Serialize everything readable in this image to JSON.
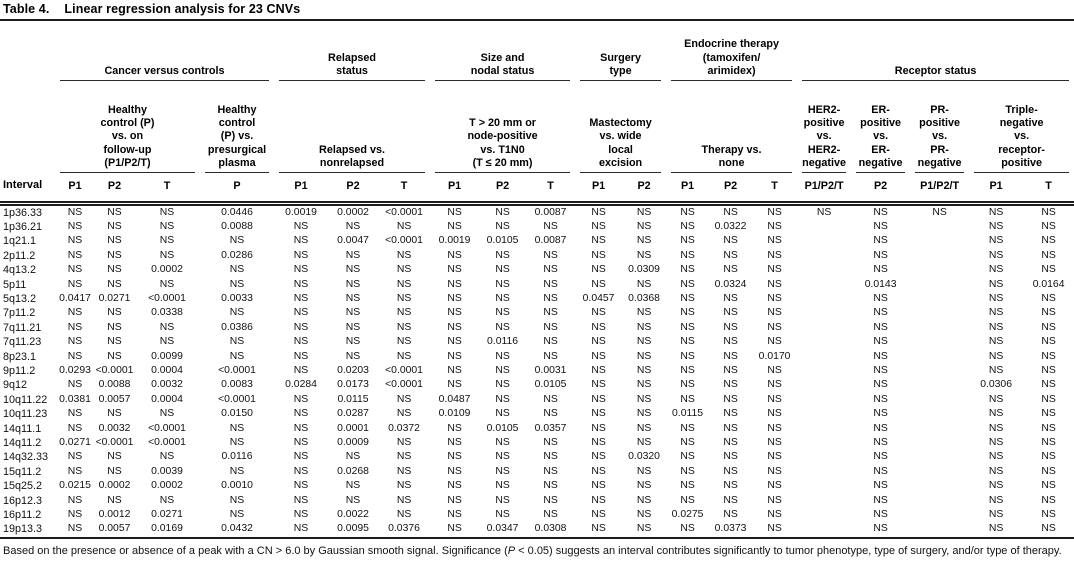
{
  "title": {
    "label": "Table 4.",
    "caption": "Linear regression analysis for 23 CNVs"
  },
  "header": {
    "interval_label": "Interval",
    "tier1": [
      {
        "label": "Cancer versus controls",
        "colspan": 4
      },
      {
        "label": "Relapsed\nstatus",
        "colspan": 3
      },
      {
        "label": "Size and\nnodal status",
        "colspan": 3
      },
      {
        "label": "Surgery\ntype",
        "colspan": 2
      },
      {
        "label": "Endocrine therapy\n(tamoxifen/\narimidex)",
        "colspan": 3
      },
      {
        "label": "Receptor status",
        "colspan": 5
      }
    ],
    "tier2": [
      {
        "label": "Healthy\ncontrol (P)\nvs. on\nfollow-up\n(P1/P2/T)",
        "colspan": 3
      },
      {
        "label": "Healthy\ncontrol\n(P) vs.\npresurgical\nplasma",
        "colspan": 1
      },
      {
        "label": "Relapsed vs.\nnonrelapsed",
        "colspan": 3
      },
      {
        "label": "T > 20 mm or\nnode-positive\nvs. T1N0\n(T ≤ 20 mm)",
        "colspan": 3
      },
      {
        "label": "Mastectomy\nvs. wide\nlocal\nexcision",
        "colspan": 2
      },
      {
        "label": "Therapy vs.\nnone",
        "colspan": 3
      },
      {
        "label": "HER2-\npositive\nvs.\nHER2-\nnegative",
        "colspan": 1
      },
      {
        "label": "ER-\npositive\nvs.\nER-\nnegative",
        "colspan": 1
      },
      {
        "label": "PR-\npositive\nvs.\nPR-\nnegative",
        "colspan": 1
      },
      {
        "label": "Triple-\nnegative\nvs.\nreceptor-\npositive",
        "colspan": 2
      }
    ],
    "tier3": [
      "P1",
      "P2",
      "T",
      "P",
      "P1",
      "P2",
      "T",
      "P1",
      "P2",
      "T",
      "P1",
      "P2",
      "P1",
      "P2",
      "T",
      "P1/P2/T",
      "P2",
      "P1/P2/T",
      "P1",
      "T"
    ]
  },
  "rows": [
    {
      "interval": "1p36.33",
      "values": [
        "NS",
        "NS",
        "NS",
        "0.0446",
        "0.0019",
        "0.0002",
        "<0.0001",
        "NS",
        "NS",
        "0.0087",
        "NS",
        "NS",
        "NS",
        "NS",
        "NS",
        "NS",
        "NS",
        "NS",
        "NS",
        "NS"
      ]
    },
    {
      "interval": "1p36.21",
      "values": [
        "NS",
        "NS",
        "NS",
        "0.0088",
        "NS",
        "NS",
        "NS",
        "NS",
        "NS",
        "NS",
        "NS",
        "NS",
        "NS",
        "0.0322",
        "NS",
        "",
        "NS",
        "",
        "NS",
        "NS"
      ]
    },
    {
      "interval": "1q21.1",
      "values": [
        "NS",
        "NS",
        "NS",
        "NS",
        "NS",
        "0.0047",
        "<0.0001",
        "0.0019",
        "0.0105",
        "0.0087",
        "NS",
        "NS",
        "NS",
        "NS",
        "NS",
        "",
        "NS",
        "",
        "NS",
        "NS"
      ]
    },
    {
      "interval": "2p11.2",
      "values": [
        "NS",
        "NS",
        "NS",
        "0.0286",
        "NS",
        "NS",
        "NS",
        "NS",
        "NS",
        "NS",
        "NS",
        "NS",
        "NS",
        "NS",
        "NS",
        "",
        "NS",
        "",
        "NS",
        "NS"
      ]
    },
    {
      "interval": "4q13.2",
      "values": [
        "NS",
        "NS",
        "0.0002",
        "NS",
        "NS",
        "NS",
        "NS",
        "NS",
        "NS",
        "NS",
        "NS",
        "0.0309",
        "NS",
        "NS",
        "NS",
        "",
        "NS",
        "",
        "NS",
        "NS"
      ]
    },
    {
      "interval": "5p11",
      "values": [
        "NS",
        "NS",
        "NS",
        "NS",
        "NS",
        "NS",
        "NS",
        "NS",
        "NS",
        "NS",
        "NS",
        "NS",
        "NS",
        "0.0324",
        "NS",
        "",
        "0.0143",
        "",
        "NS",
        "0.0164"
      ]
    },
    {
      "interval": "5q13.2",
      "values": [
        "0.0417",
        "0.0271",
        "<0.0001",
        "0.0033",
        "NS",
        "NS",
        "NS",
        "NS",
        "NS",
        "NS",
        "0.0457",
        "0.0368",
        "NS",
        "NS",
        "NS",
        "",
        "NS",
        "",
        "NS",
        "NS"
      ]
    },
    {
      "interval": "7p11.2",
      "values": [
        "NS",
        "NS",
        "0.0338",
        "NS",
        "NS",
        "NS",
        "NS",
        "NS",
        "NS",
        "NS",
        "NS",
        "NS",
        "NS",
        "NS",
        "NS",
        "",
        "NS",
        "",
        "NS",
        "NS"
      ]
    },
    {
      "interval": "7q11.21",
      "values": [
        "NS",
        "NS",
        "NS",
        "0.0386",
        "NS",
        "NS",
        "NS",
        "NS",
        "NS",
        "NS",
        "NS",
        "NS",
        "NS",
        "NS",
        "NS",
        "",
        "NS",
        "",
        "NS",
        "NS"
      ]
    },
    {
      "interval": "7q11.23",
      "values": [
        "NS",
        "NS",
        "NS",
        "NS",
        "NS",
        "NS",
        "NS",
        "NS",
        "0.0116",
        "NS",
        "NS",
        "NS",
        "NS",
        "NS",
        "NS",
        "",
        "NS",
        "",
        "NS",
        "NS"
      ]
    },
    {
      "interval": "8p23.1",
      "values": [
        "NS",
        "NS",
        "0.0099",
        "NS",
        "NS",
        "NS",
        "NS",
        "NS",
        "NS",
        "NS",
        "NS",
        "NS",
        "NS",
        "NS",
        "0.0170",
        "",
        "NS",
        "",
        "NS",
        "NS"
      ]
    },
    {
      "interval": "9p11.2",
      "values": [
        "0.0293",
        "<0.0001",
        "0.0004",
        "<0.0001",
        "NS",
        "0.0203",
        "<0.0001",
        "NS",
        "NS",
        "0.0031",
        "NS",
        "NS",
        "NS",
        "NS",
        "NS",
        "",
        "NS",
        "",
        "NS",
        "NS"
      ]
    },
    {
      "interval": "9q12",
      "values": [
        "NS",
        "0.0088",
        "0.0032",
        "0.0083",
        "0.0284",
        "0.0173",
        "<0.0001",
        "NS",
        "NS",
        "0.0105",
        "NS",
        "NS",
        "NS",
        "NS",
        "NS",
        "",
        "NS",
        "",
        "0.0306",
        "NS"
      ]
    },
    {
      "interval": "10q11.22",
      "values": [
        "0.0381",
        "0.0057",
        "0.0004",
        "<0.0001",
        "NS",
        "0.0115",
        "NS",
        "0.0487",
        "NS",
        "NS",
        "NS",
        "NS",
        "NS",
        "NS",
        "NS",
        "",
        "NS",
        "",
        "NS",
        "NS"
      ]
    },
    {
      "interval": "10q11.23",
      "values": [
        "NS",
        "NS",
        "NS",
        "0.0150",
        "NS",
        "0.0287",
        "NS",
        "0.0109",
        "NS",
        "NS",
        "NS",
        "NS",
        "0.0115",
        "NS",
        "NS",
        "",
        "NS",
        "",
        "NS",
        "NS"
      ]
    },
    {
      "interval": "14q11.1",
      "values": [
        "NS",
        "0.0032",
        "<0.0001",
        "NS",
        "NS",
        "0.0001",
        "0.0372",
        "NS",
        "0.0105",
        "0.0357",
        "NS",
        "NS",
        "NS",
        "NS",
        "NS",
        "",
        "NS",
        "",
        "NS",
        "NS"
      ]
    },
    {
      "interval": "14q11.2",
      "values": [
        "0.0271",
        "<0.0001",
        "<0.0001",
        "NS",
        "NS",
        "0.0009",
        "NS",
        "NS",
        "NS",
        "NS",
        "NS",
        "NS",
        "NS",
        "NS",
        "NS",
        "",
        "NS",
        "",
        "NS",
        "NS"
      ]
    },
    {
      "interval": "14q32.33",
      "values": [
        "NS",
        "NS",
        "NS",
        "0.0116",
        "NS",
        "NS",
        "NS",
        "NS",
        "NS",
        "NS",
        "NS",
        "0.0320",
        "NS",
        "NS",
        "NS",
        "",
        "NS",
        "",
        "NS",
        "NS"
      ]
    },
    {
      "interval": "15q11.2",
      "values": [
        "NS",
        "NS",
        "0.0039",
        "NS",
        "NS",
        "0.0268",
        "NS",
        "NS",
        "NS",
        "NS",
        "NS",
        "NS",
        "NS",
        "NS",
        "NS",
        "",
        "NS",
        "",
        "NS",
        "NS"
      ]
    },
    {
      "interval": "15q25.2",
      "values": [
        "0.0215",
        "0.0002",
        "0.0002",
        "0.0010",
        "NS",
        "NS",
        "NS",
        "NS",
        "NS",
        "NS",
        "NS",
        "NS",
        "NS",
        "NS",
        "NS",
        "",
        "NS",
        "",
        "NS",
        "NS"
      ]
    },
    {
      "interval": "16p12.3",
      "values": [
        "NS",
        "NS",
        "NS",
        "NS",
        "NS",
        "NS",
        "NS",
        "NS",
        "NS",
        "NS",
        "NS",
        "NS",
        "NS",
        "NS",
        "NS",
        "",
        "NS",
        "",
        "NS",
        "NS"
      ]
    },
    {
      "interval": "16p11.2",
      "values": [
        "NS",
        "0.0012",
        "0.0271",
        "NS",
        "NS",
        "0.0022",
        "NS",
        "NS",
        "NS",
        "NS",
        "NS",
        "NS",
        "0.0275",
        "NS",
        "NS",
        "",
        "NS",
        "",
        "NS",
        "NS"
      ]
    },
    {
      "interval": "19p13.3",
      "values": [
        "NS",
        "0.0057",
        "0.0169",
        "0.0432",
        "NS",
        "0.0095",
        "0.0376",
        "NS",
        "0.0347",
        "0.0308",
        "NS",
        "NS",
        "NS",
        "0.0373",
        "NS",
        "",
        "NS",
        "",
        "NS",
        "NS"
      ]
    }
  ],
  "footnote": {
    "pre": "Based on the presence or absence of a peak with a CN > 6.0 by Gaussian smooth signal. Significance (",
    "italic": "P",
    "post": " < 0.05) suggests an interval contributes significantly to tumor phenotype, type of surgery, and/or type of therapy."
  }
}
